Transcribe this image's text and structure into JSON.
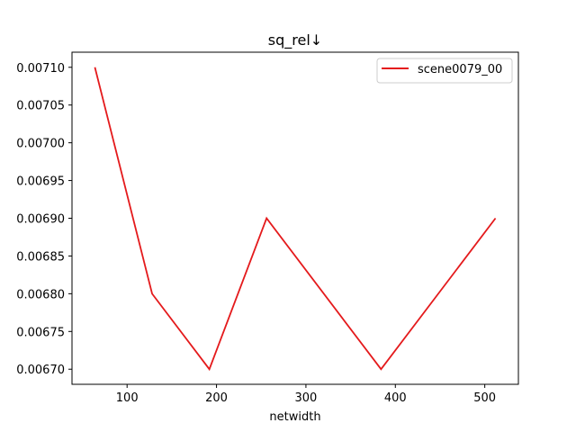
{
  "chart_data": {
    "type": "line",
    "title": "sq_rel↓",
    "xlabel": "netwidth",
    "ylabel": "",
    "xlim": [
      38.4,
      537.6
    ],
    "ylim": [
      0.00668,
      0.00712
    ],
    "xticks": [
      100,
      200,
      300,
      400,
      500
    ],
    "yticks": [
      0.0067,
      0.00675,
      0.0068,
      0.00685,
      0.0069,
      0.00695,
      0.007,
      0.00705,
      0.0071
    ],
    "ytick_labels": [
      "0.00670",
      "0.00675",
      "0.00680",
      "0.00685",
      "0.00690",
      "0.00695",
      "0.00700",
      "0.00705",
      "0.00710"
    ],
    "grid": false,
    "legend": "top-right",
    "series": [
      {
        "name": "scene0079_00",
        "color": "#e41a1c",
        "x": [
          64,
          128,
          192,
          256,
          384,
          512
        ],
        "y": [
          0.0071,
          0.0068,
          0.0067,
          0.0069,
          0.0067,
          0.0069
        ]
      }
    ]
  }
}
